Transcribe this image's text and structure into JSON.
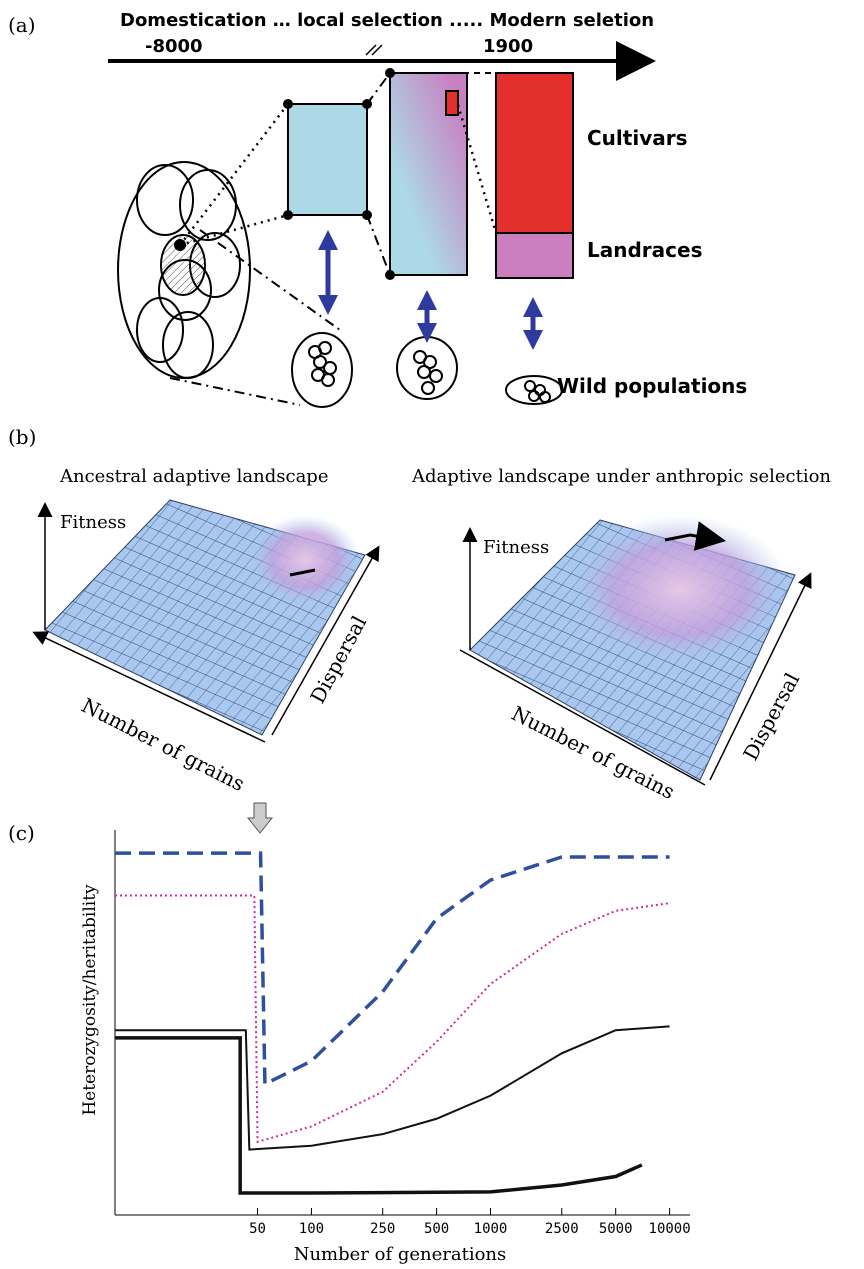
{
  "panel_a": {
    "label": "(a)",
    "timeline": "Domestication … local selection ..... Modern seletion",
    "year_start": "-8000",
    "year_modern": "1900",
    "cultivars": "Cultivars",
    "landraces": "Landraces",
    "wild": "Wild populations"
  },
  "panel_b": {
    "label": "(b)",
    "left_title": "Ancestral adaptive landscape",
    "right_title": "Adaptive landscape under anthropic selection",
    "fitness": "Fitness",
    "x_axis": "Number of grains",
    "y_axis": "Dispersal"
  },
  "chart_data": {
    "type": "line",
    "label": "(c)",
    "xlabel": "Number of generations",
    "ylabel": "Heterozygosity/heritability",
    "log_x": true,
    "xlim": [
      8,
      13000
    ],
    "ylim": [
      0,
      1
    ],
    "xticks": [
      50,
      100,
      250,
      500,
      1000,
      2500,
      5000,
      10000
    ],
    "series": [
      {
        "color": "#2f4f9f",
        "style": "dashed",
        "width": 3.5,
        "x": [
          8,
          52,
          55,
          100,
          250,
          500,
          1000,
          2500,
          5000,
          10000
        ],
        "values": [
          0.94,
          0.94,
          0.34,
          0.4,
          0.58,
          0.77,
          0.87,
          0.93,
          0.93,
          0.93
        ]
      },
      {
        "color": "#d02a9a",
        "style": "dotted",
        "width": 2,
        "x": [
          8,
          48,
          50,
          100,
          250,
          500,
          1000,
          2500,
          5000,
          10000
        ],
        "values": [
          0.83,
          0.83,
          0.19,
          0.23,
          0.32,
          0.45,
          0.6,
          0.73,
          0.79,
          0.81
        ]
      },
      {
        "color": "#111111",
        "style": "solid",
        "width": 2,
        "x": [
          8,
          43,
          45,
          100,
          250,
          500,
          1000,
          2500,
          5000,
          10000
        ],
        "values": [
          0.48,
          0.48,
          0.17,
          0.18,
          0.21,
          0.25,
          0.31,
          0.42,
          0.48,
          0.49
        ]
      },
      {
        "color": "#111111",
        "style": "solid",
        "width": 3.5,
        "x": [
          8,
          40,
          40,
          100,
          1000,
          2500,
          5000,
          7000
        ],
        "values": [
          0.46,
          0.46,
          0.057,
          0.057,
          0.06,
          0.078,
          0.1,
          0.13
        ]
      }
    ]
  }
}
